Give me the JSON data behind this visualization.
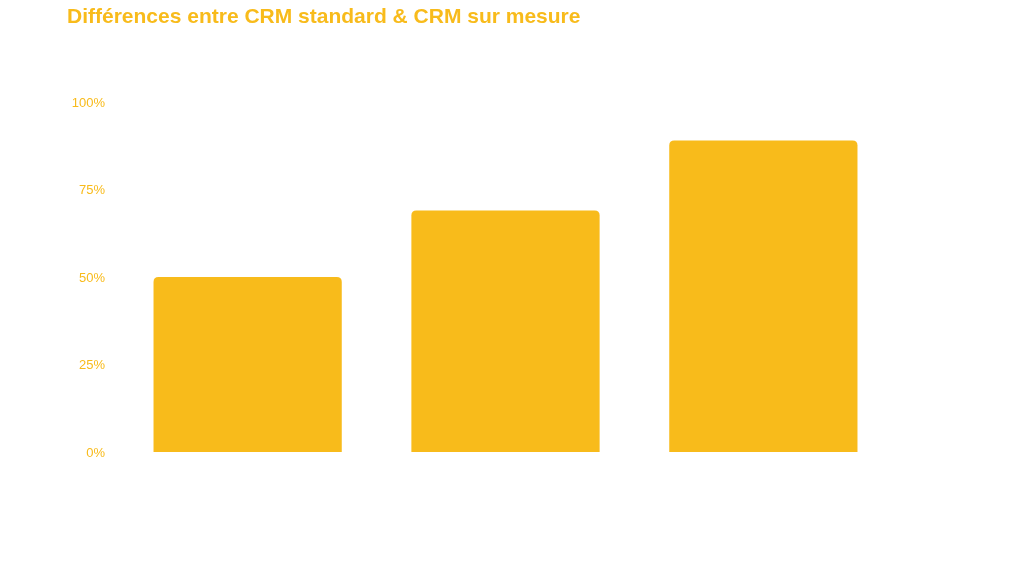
{
  "chart_data": {
    "type": "bar",
    "title": "Différences entre CRM standard & CRM sur mesure",
    "categories": [
      null,
      null,
      null
    ],
    "values": [
      50,
      69,
      89
    ],
    "color": "#f8bb1b",
    "ylim": [
      0,
      100
    ],
    "yticks": [
      {
        "value": 0,
        "label": "0%"
      },
      {
        "value": 25,
        "label": "25%"
      },
      {
        "value": 50,
        "label": "50%"
      },
      {
        "value": 75,
        "label": "75%"
      },
      {
        "value": 100,
        "label": "100%"
      }
    ],
    "grid": false
  }
}
